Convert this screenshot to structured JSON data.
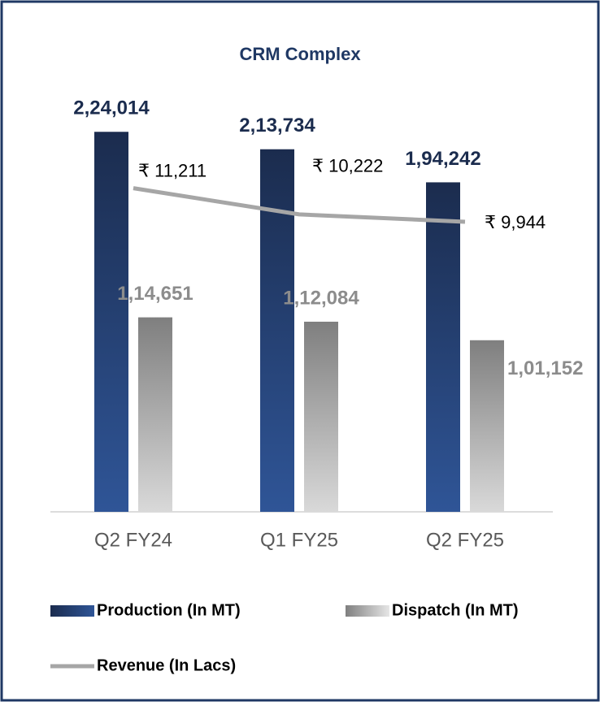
{
  "chart_data": {
    "type": "bar",
    "title": "CRM Complex",
    "categories": [
      "Q2 FY24",
      "Q1 FY25",
      "Q2 FY25"
    ],
    "series": [
      {
        "name": "Production (In MT)",
        "color": "#2f5597",
        "values": [
          224014,
          213734,
          194242
        ],
        "value_labels": [
          "2,24,014",
          "2,13,734",
          "1,94,242"
        ]
      },
      {
        "name": "Dispatch (In MT)",
        "color": "#a6a6a6",
        "values": [
          114651,
          112084,
          101152
        ],
        "value_labels": [
          "1,14,651",
          "1,12,084",
          "1,01,152"
        ]
      },
      {
        "name": "Revenue (In Lacs)",
        "type": "line",
        "axis": "y2",
        "color": "#a6a6a6",
        "values": [
          11211,
          10222,
          9944
        ],
        "value_labels": [
          "₹ 11,211",
          "₹ 10,222",
          "₹ 9,944"
        ]
      }
    ],
    "ylim": [
      0,
      250000
    ],
    "y2lim": [
      -1000,
      15000
    ]
  }
}
